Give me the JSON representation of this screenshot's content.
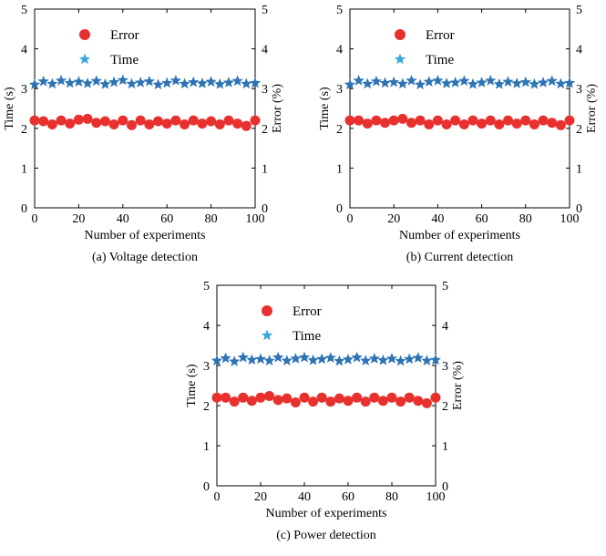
{
  "chart_data": [
    {
      "type": "scatter",
      "caption": "(a) Voltage detection",
      "xlabel": "Number of experiments",
      "ylabel_left": "Time (s)",
      "ylabel_right": "Error (%)",
      "xlim": [
        0,
        100
      ],
      "ylim": [
        0,
        5
      ],
      "x_ticks": [
        0,
        20,
        40,
        60,
        80,
        100
      ],
      "y_ticks": [
        0,
        1,
        2,
        3,
        4,
        5
      ],
      "legend": [
        {
          "label": "Error",
          "marker": "circle",
          "color": "#e8312f"
        },
        {
          "label": "Time",
          "marker": "star",
          "color": "#3aa7dd"
        }
      ],
      "series": [
        {
          "name": "Time",
          "axis": "left",
          "marker": "star",
          "color": "#2e74b5",
          "x": [
            0,
            4,
            8,
            12,
            16,
            20,
            24,
            28,
            32,
            36,
            40,
            44,
            48,
            52,
            56,
            60,
            64,
            68,
            72,
            76,
            80,
            84,
            88,
            92,
            96,
            100
          ],
          "values": [
            3.1,
            3.18,
            3.12,
            3.2,
            3.14,
            3.17,
            3.13,
            3.19,
            3.11,
            3.16,
            3.21,
            3.12,
            3.15,
            3.18,
            3.1,
            3.14,
            3.2,
            3.12,
            3.16,
            3.13,
            3.17,
            3.11,
            3.15,
            3.19,
            3.12,
            3.14
          ]
        },
        {
          "name": "Error",
          "axis": "right",
          "marker": "circle",
          "color": "#e8312f",
          "x": [
            0,
            4,
            8,
            12,
            16,
            20,
            24,
            28,
            32,
            36,
            40,
            44,
            48,
            52,
            56,
            60,
            64,
            68,
            72,
            76,
            80,
            84,
            88,
            92,
            96,
            100
          ],
          "values": [
            2.2,
            2.18,
            2.1,
            2.2,
            2.12,
            2.22,
            2.24,
            2.14,
            2.18,
            2.1,
            2.2,
            2.08,
            2.2,
            2.1,
            2.18,
            2.12,
            2.2,
            2.1,
            2.2,
            2.12,
            2.18,
            2.1,
            2.2,
            2.12,
            2.06,
            2.2
          ]
        }
      ]
    },
    {
      "type": "scatter",
      "caption": "(b) Current detection",
      "xlabel": "Number of experiments",
      "ylabel_left": "Time (s)",
      "ylabel_right": "Error (%)",
      "xlim": [
        0,
        100
      ],
      "ylim": [
        0,
        5
      ],
      "x_ticks": [
        0,
        20,
        40,
        60,
        80,
        100
      ],
      "y_ticks": [
        0,
        1,
        2,
        3,
        4,
        5
      ],
      "legend": [
        {
          "label": "Error",
          "marker": "circle",
          "color": "#e8312f"
        },
        {
          "label": "Time",
          "marker": "star",
          "color": "#3aa7dd"
        }
      ],
      "series": [
        {
          "name": "Time",
          "axis": "left",
          "marker": "star",
          "color": "#2e74b5",
          "x": [
            0,
            4,
            8,
            12,
            16,
            20,
            24,
            28,
            32,
            36,
            40,
            44,
            48,
            52,
            56,
            60,
            64,
            68,
            72,
            76,
            80,
            84,
            88,
            92,
            96,
            100
          ],
          "values": [
            3.1,
            3.2,
            3.12,
            3.18,
            3.14,
            3.16,
            3.12,
            3.2,
            3.1,
            3.17,
            3.2,
            3.13,
            3.15,
            3.19,
            3.11,
            3.15,
            3.2,
            3.11,
            3.17,
            3.13,
            3.16,
            3.11,
            3.15,
            3.19,
            3.12,
            3.14
          ]
        },
        {
          "name": "Error",
          "axis": "right",
          "marker": "circle",
          "color": "#e8312f",
          "x": [
            0,
            4,
            8,
            12,
            16,
            20,
            24,
            28,
            32,
            36,
            40,
            44,
            48,
            52,
            56,
            60,
            64,
            68,
            72,
            76,
            80,
            84,
            88,
            92,
            96,
            100
          ],
          "values": [
            2.2,
            2.2,
            2.12,
            2.2,
            2.14,
            2.2,
            2.24,
            2.14,
            2.2,
            2.1,
            2.2,
            2.1,
            2.2,
            2.1,
            2.2,
            2.12,
            2.2,
            2.1,
            2.2,
            2.12,
            2.2,
            2.1,
            2.2,
            2.14,
            2.08,
            2.2
          ]
        }
      ]
    },
    {
      "type": "scatter",
      "caption": "(c) Power detection",
      "xlabel": "Number of experiments",
      "ylabel_left": "Time (s)",
      "ylabel_right": "Error (%)",
      "xlim": [
        0,
        100
      ],
      "ylim": [
        0,
        5
      ],
      "x_ticks": [
        0,
        20,
        40,
        60,
        80,
        100
      ],
      "y_ticks": [
        0,
        1,
        2,
        3,
        4,
        5
      ],
      "legend": [
        {
          "label": "Error",
          "marker": "circle",
          "color": "#e8312f"
        },
        {
          "label": "Time",
          "marker": "star",
          "color": "#3aa7dd"
        }
      ],
      "series": [
        {
          "name": "Time",
          "axis": "left",
          "marker": "star",
          "color": "#2e74b5",
          "x": [
            0,
            4,
            8,
            12,
            16,
            20,
            24,
            28,
            32,
            36,
            40,
            44,
            48,
            52,
            56,
            60,
            64,
            68,
            72,
            76,
            80,
            84,
            88,
            92,
            96,
            100
          ],
          "values": [
            3.12,
            3.18,
            3.1,
            3.2,
            3.14,
            3.16,
            3.12,
            3.2,
            3.12,
            3.17,
            3.2,
            3.13,
            3.16,
            3.19,
            3.11,
            3.15,
            3.2,
            3.12,
            3.17,
            3.13,
            3.17,
            3.11,
            3.16,
            3.19,
            3.12,
            3.14
          ]
        },
        {
          "name": "Error",
          "axis": "right",
          "marker": "circle",
          "color": "#e8312f",
          "x": [
            0,
            4,
            8,
            12,
            16,
            20,
            24,
            28,
            32,
            36,
            40,
            44,
            48,
            52,
            56,
            60,
            64,
            68,
            72,
            76,
            80,
            84,
            88,
            92,
            96,
            100
          ],
          "values": [
            2.2,
            2.2,
            2.1,
            2.2,
            2.12,
            2.2,
            2.24,
            2.14,
            2.18,
            2.08,
            2.2,
            2.1,
            2.2,
            2.1,
            2.18,
            2.12,
            2.2,
            2.1,
            2.2,
            2.12,
            2.2,
            2.1,
            2.2,
            2.12,
            2.06,
            2.2
          ]
        }
      ]
    }
  ]
}
